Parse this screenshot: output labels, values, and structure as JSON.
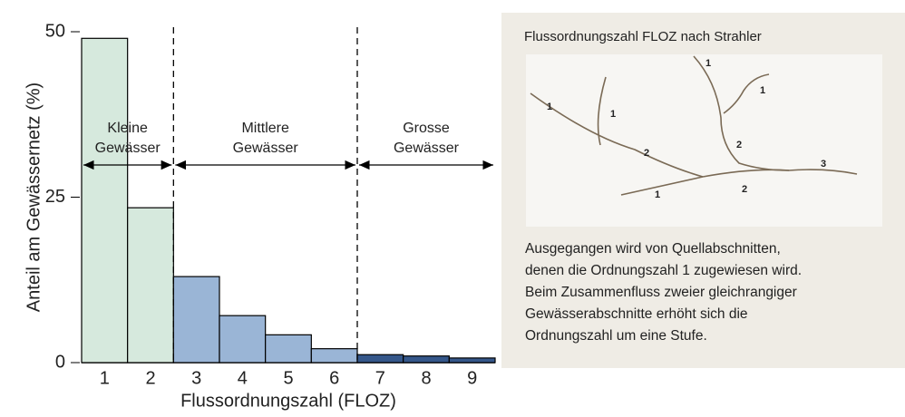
{
  "chart_data": {
    "type": "bar",
    "categories": [
      "1",
      "2",
      "3",
      "4",
      "5",
      "6",
      "7",
      "8",
      "9"
    ],
    "values": [
      49,
      23.4,
      13,
      7.1,
      4.2,
      2.1,
      1.2,
      1.0,
      0.7
    ],
    "colors": [
      "#d6e9dd",
      "#d6e9dd",
      "#9ab5d6",
      "#9ab5d6",
      "#9ab5d6",
      "#9ab5d6",
      "#35578a",
      "#35578a",
      "#35578a"
    ],
    "ylim": [
      0,
      50
    ],
    "yticks": [
      0,
      25,
      50
    ],
    "y_label": "Anteil am Gewässernetz (%)",
    "x_label": "Flussordnungszahl (FLOZ)",
    "groups": [
      {
        "lines": [
          "Kleine",
          "Gewässer"
        ]
      },
      {
        "lines": [
          "Mittlere",
          "Gewässer"
        ]
      },
      {
        "lines": [
          "Grosse",
          "Gewässer"
        ]
      }
    ]
  },
  "panel": {
    "title": "Flussordnungszahl FLOZ nach Strahler",
    "diagram_labels": [
      "1",
      "1",
      "1",
      "1",
      "2",
      "2",
      "3",
      "2",
      "1"
    ],
    "text_lines": [
      "Ausgegangen wird von Quellabschnitten,",
      "denen die Ordnungszahl 1 zugewiesen wird.",
      "Beim Zusammenfluss zweier gleichrangiger",
      "Gewässerabschnitte erhöht sich die",
      "Ordnungszahl um eine Stufe."
    ]
  }
}
